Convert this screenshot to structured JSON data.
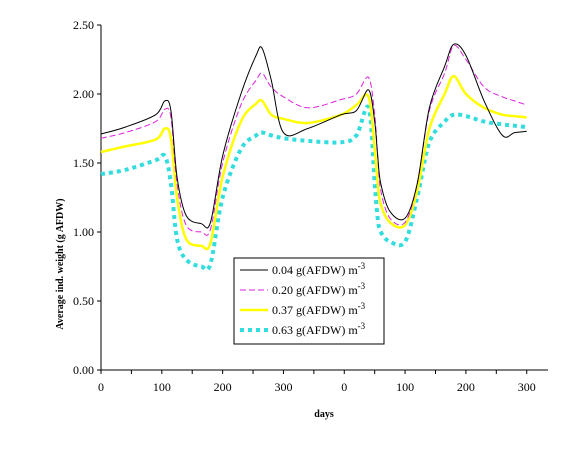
{
  "chart_data": {
    "type": "line",
    "xlabel": "days",
    "ylabel": "Average ind. weight (g AFDW)",
    "ylim": [
      0,
      2.5
    ],
    "grid": false,
    "legend_position": "center-bottom",
    "y_ticks": [
      "0.00",
      "0.50",
      "1.00",
      "1.50",
      "2.00",
      "2.50"
    ],
    "x_ticks": [
      "0",
      "100",
      "200",
      "300",
      "0",
      "100",
      "200",
      "300"
    ],
    "x_axis_note": "two consecutive years, day count restarts at 0",
    "x": [
      0,
      40,
      90,
      105,
      115,
      125,
      140,
      165,
      180,
      200,
      230,
      255,
      265,
      280,
      300,
      340,
      395,
      420,
      440,
      450,
      455,
      460,
      475,
      500,
      520,
      540,
      565,
      580,
      600,
      630,
      660,
      680,
      700
    ],
    "series": [
      {
        "name": "0.04 g(AFDW) m",
        "name_superscript": "-3",
        "color": "#000000",
        "dash": "solid",
        "width": 1,
        "values": [
          1.71,
          1.76,
          1.85,
          1.95,
          1.88,
          1.4,
          1.12,
          1.06,
          1.07,
          1.55,
          2.0,
          2.28,
          2.33,
          2.1,
          1.72,
          1.75,
          1.85,
          1.88,
          2.03,
          1.8,
          1.55,
          1.35,
          1.15,
          1.1,
          1.35,
          1.9,
          2.2,
          2.36,
          2.28,
          1.95,
          1.7,
          1.72,
          1.73
        ]
      },
      {
        "name": "0.20 g(AFDW) m",
        "name_superscript": "-3",
        "color": "#dd22dd",
        "dash": "6,3",
        "width": 1,
        "values": [
          1.68,
          1.72,
          1.8,
          1.89,
          1.83,
          1.35,
          1.05,
          1.0,
          1.02,
          1.5,
          1.92,
          2.1,
          2.15,
          2.05,
          1.98,
          1.9,
          1.96,
          2.0,
          2.12,
          1.85,
          1.55,
          1.3,
          1.1,
          1.07,
          1.35,
          1.88,
          2.15,
          2.35,
          2.25,
          2.05,
          1.98,
          1.95,
          1.92
        ]
      },
      {
        "name": "0.37 g(AFDW) m",
        "name_superscript": "-3",
        "color": "#ffff00",
        "dash": "solid",
        "width": 2.5,
        "values": [
          1.58,
          1.62,
          1.67,
          1.75,
          1.68,
          1.25,
          0.95,
          0.9,
          0.92,
          1.4,
          1.8,
          1.93,
          1.95,
          1.85,
          1.82,
          1.79,
          1.85,
          1.92,
          1.98,
          1.6,
          1.35,
          1.2,
          1.07,
          1.05,
          1.3,
          1.75,
          2.0,
          2.13,
          2.0,
          1.9,
          1.85,
          1.84,
          1.83
        ]
      },
      {
        "name": "0.63 g(AFDW) m",
        "name_superscript": "-3",
        "color": "#33dddd",
        "dash": "4,4",
        "width": 4,
        "values": [
          1.42,
          1.45,
          1.52,
          1.55,
          1.35,
          0.95,
          0.8,
          0.75,
          0.77,
          1.25,
          1.6,
          1.7,
          1.72,
          1.7,
          1.68,
          1.66,
          1.65,
          1.7,
          1.9,
          1.35,
          1.1,
          1.0,
          0.93,
          0.93,
          1.25,
          1.65,
          1.8,
          1.85,
          1.84,
          1.8,
          1.78,
          1.77,
          1.76
        ]
      }
    ]
  }
}
